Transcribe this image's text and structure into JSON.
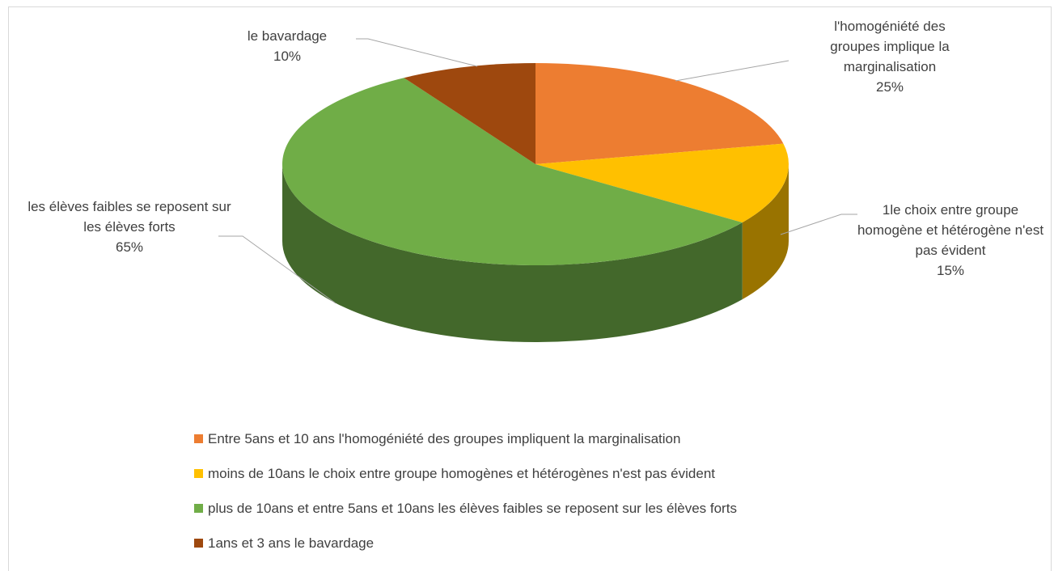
{
  "chart_data": {
    "type": "pie",
    "pie3d": true,
    "categories": [
      "Entre 5ans et 10 ans l'homogéniété des groupes impliquent la marginalisation",
      "moins de 10ans le choix entre groupe homogènes et hétérogènes n'est pas évident",
      "plus de 10ans et entre 5ans et 10ans les élèves faibles se reposent sur les élèves forts",
      "1ans et 3 ans le bavardage"
    ],
    "data_labels": [
      "l'homogéniété des groupes implique la marginalisation",
      "1le choix entre groupe homogène et hétérogène n'est pas évident",
      "les élèves faibles se reposent sur les élèves forts",
      "le bavardage"
    ],
    "values": [
      25,
      15,
      65,
      10
    ],
    "value_labels": [
      "25%",
      "15%",
      "65%",
      "10%"
    ],
    "colors": [
      "#ed7d31",
      "#ffc000",
      "#70ad47",
      "#9e480e"
    ],
    "legend": "bottom"
  }
}
